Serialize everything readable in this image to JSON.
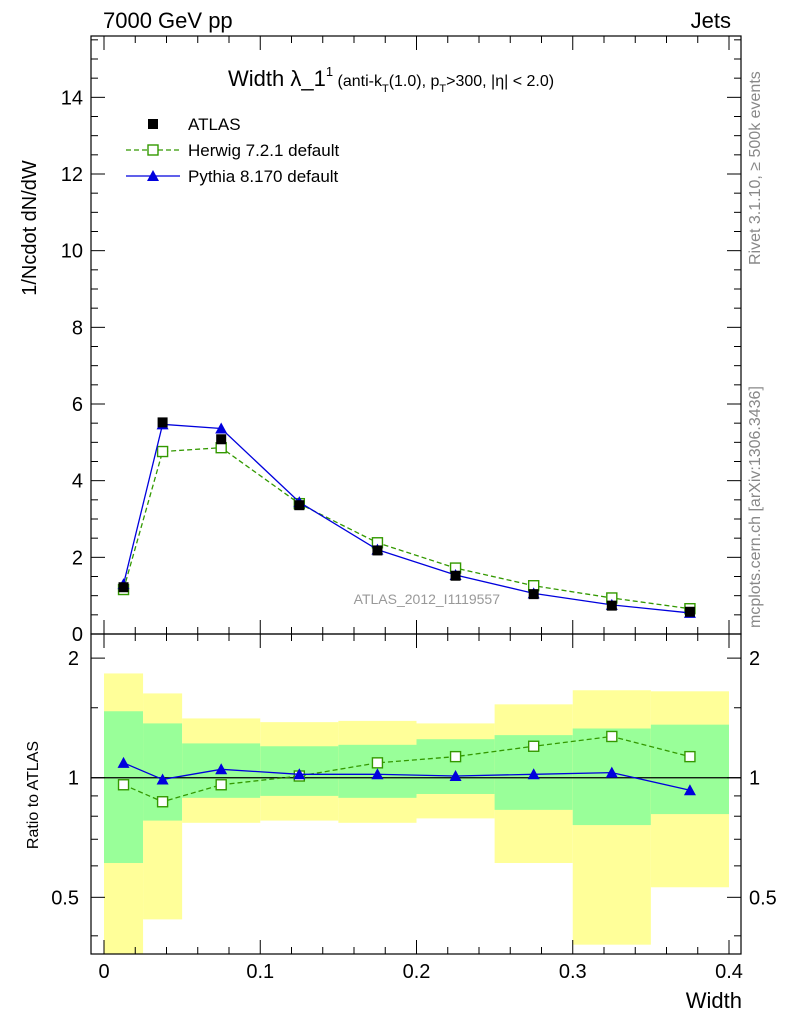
{
  "header": {
    "energy": "7000 GeV pp",
    "category": "Jets"
  },
  "side_labels": {
    "rivet": "Rivet 3.1.10, ≥ 500k events",
    "mcplots": "mcplots.cern.ch [arXiv:1306.3436]"
  },
  "chart_data": [
    {
      "type": "line",
      "title": "Width λ_1",
      "title_superscript": "1",
      "subtitle_parts": {
        "part1": " (anti-k",
        "part1_sub": "T",
        "part2": "(1.0), p",
        "part2_sub": "T",
        "part3": ">300, |η| < 2.0)"
      },
      "watermark": "ATLAS_2012_I1119557",
      "ylabel": "1/Ncdot dN/dW",
      "xlim": [
        0,
        0.4
      ],
      "ylim": [
        0,
        15.6
      ],
      "yticks": [
        "0",
        "2",
        "4",
        "6",
        "8",
        "10",
        "12",
        "14"
      ],
      "legend_position": "top-left",
      "x": [
        0.0125,
        0.0375,
        0.075,
        0.125,
        0.175,
        0.225,
        0.275,
        0.325,
        0.375
      ],
      "series": [
        {
          "name": "ATLAS",
          "style": "data",
          "color": "#000000",
          "values": [
            1.22,
            5.52,
            5.08,
            3.36,
            2.18,
            1.52,
            1.04,
            0.74,
            0.58
          ]
        },
        {
          "name": "Herwig 7.2.1 default",
          "style": "dashed-open-square",
          "color": "#339900",
          "values": [
            1.16,
            4.76,
            4.86,
            3.4,
            2.38,
            1.72,
            1.26,
            0.94,
            0.66
          ]
        },
        {
          "name": "Pythia 8.170 default",
          "style": "solid-triangle",
          "color": "#0000dd",
          "values": [
            1.3,
            5.47,
            5.36,
            3.44,
            2.2,
            1.54,
            1.06,
            0.76,
            0.55
          ]
        }
      ]
    },
    {
      "type": "line",
      "ylabel": "Ratio to ATLAS",
      "xlabel": "Width",
      "xlim": [
        0,
        0.4
      ],
      "ylim": [
        0.36,
        2.3
      ],
      "y_scale": "log",
      "xticks": [
        "0",
        "0.1",
        "0.2",
        "0.3",
        "0.4"
      ],
      "yticks": [
        "0.5",
        "1",
        "2"
      ],
      "reference_line": 1,
      "bands": {
        "bin_edges": [
          0,
          0.025,
          0.05,
          0.1,
          0.15,
          0.2,
          0.25,
          0.3,
          0.35,
          0.4
        ],
        "stat_color": "#99ff99",
        "total_color": "#ffff99",
        "stat_low": [
          0.61,
          0.78,
          0.89,
          0.9,
          0.89,
          0.91,
          0.83,
          0.76,
          0.81
        ],
        "stat_high": [
          1.47,
          1.37,
          1.22,
          1.2,
          1.21,
          1.25,
          1.28,
          1.33,
          1.36
        ],
        "total_low": [
          0.36,
          0.44,
          0.77,
          0.78,
          0.77,
          0.79,
          0.61,
          0.38,
          0.53
        ],
        "total_high": [
          1.83,
          1.63,
          1.41,
          1.38,
          1.39,
          1.37,
          1.53,
          1.66,
          1.65
        ]
      },
      "x": [
        0.0125,
        0.0375,
        0.075,
        0.125,
        0.175,
        0.225,
        0.275,
        0.325,
        0.375
      ],
      "series": [
        {
          "name": "Herwig 7.2.1 default",
          "style": "dashed-open-square",
          "color": "#339900",
          "values": [
            0.96,
            0.87,
            0.96,
            1.01,
            1.09,
            1.13,
            1.2,
            1.27,
            1.13
          ]
        },
        {
          "name": "Pythia 8.170 default",
          "style": "solid-triangle",
          "color": "#0000dd",
          "values": [
            1.09,
            0.99,
            1.05,
            1.02,
            1.02,
            1.01,
            1.02,
            1.03,
            0.93
          ]
        }
      ]
    }
  ]
}
